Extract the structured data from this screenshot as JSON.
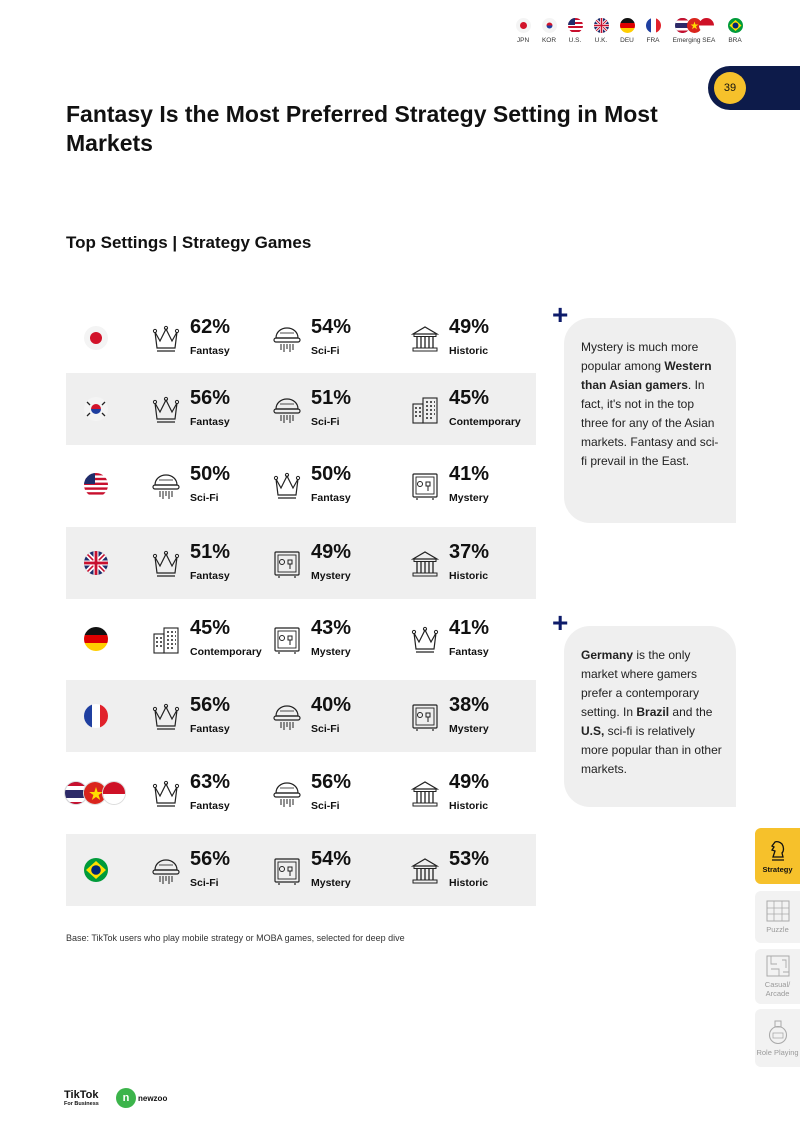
{
  "header": {
    "markets": [
      {
        "code": "JPN"
      },
      {
        "code": "KOR"
      },
      {
        "code": "U.S."
      },
      {
        "code": "U.K."
      },
      {
        "code": "DEU"
      },
      {
        "code": "FRA"
      },
      {
        "code": "Emerging SEA"
      },
      {
        "code": "BRA"
      }
    ],
    "page_number": "39"
  },
  "title": "Fantasy Is the Most Preferred Strategy Setting in Most Markets",
  "subtitle": "Top Settings | Strategy Games",
  "rows": [
    {
      "market": "JPN",
      "items": [
        {
          "pct": "62%",
          "label": "Fantasy",
          "icon": "crown-icon"
        },
        {
          "pct": "54%",
          "label": "Sci-Fi",
          "icon": "spaceship-icon"
        },
        {
          "pct": "49%",
          "label": "Historic",
          "icon": "temple-icon"
        }
      ]
    },
    {
      "market": "KOR",
      "items": [
        {
          "pct": "56%",
          "label": "Fantasy",
          "icon": "crown-icon"
        },
        {
          "pct": "51%",
          "label": "Sci-Fi",
          "icon": "spaceship-icon"
        },
        {
          "pct": "45%",
          "label": "Contemporary",
          "icon": "building-icon"
        }
      ]
    },
    {
      "market": "U.S.",
      "items": [
        {
          "pct": "50%",
          "label": "Sci-Fi",
          "icon": "spaceship-icon"
        },
        {
          "pct": "50%",
          "label": "Fantasy",
          "icon": "crown-icon"
        },
        {
          "pct": "41%",
          "label": "Mystery",
          "icon": "safe-icon"
        }
      ]
    },
    {
      "market": "U.K.",
      "items": [
        {
          "pct": "51%",
          "label": "Fantasy",
          "icon": "crown-icon"
        },
        {
          "pct": "49%",
          "label": "Mystery",
          "icon": "safe-icon"
        },
        {
          "pct": "37%",
          "label": "Historic",
          "icon": "temple-icon"
        }
      ]
    },
    {
      "market": "DEU",
      "items": [
        {
          "pct": "45%",
          "label": "Contemporary",
          "icon": "building-icon"
        },
        {
          "pct": "43%",
          "label": "Mystery",
          "icon": "safe-icon"
        },
        {
          "pct": "41%",
          "label": "Fantasy",
          "icon": "crown-icon"
        }
      ]
    },
    {
      "market": "FRA",
      "items": [
        {
          "pct": "56%",
          "label": "Fantasy",
          "icon": "crown-icon"
        },
        {
          "pct": "40%",
          "label": "Sci-Fi",
          "icon": "spaceship-icon"
        },
        {
          "pct": "38%",
          "label": "Mystery",
          "icon": "safe-icon"
        }
      ]
    },
    {
      "market": "Emerging SEA",
      "items": [
        {
          "pct": "63%",
          "label": "Fantasy",
          "icon": "crown-icon"
        },
        {
          "pct": "56%",
          "label": "Sci-Fi",
          "icon": "spaceship-icon"
        },
        {
          "pct": "49%",
          "label": "Historic",
          "icon": "temple-icon"
        }
      ]
    },
    {
      "market": "BRA",
      "items": [
        {
          "pct": "56%",
          "label": "Sci-Fi",
          "icon": "spaceship-icon"
        },
        {
          "pct": "54%",
          "label": "Mystery",
          "icon": "safe-icon"
        },
        {
          "pct": "53%",
          "label": "Historic",
          "icon": "temple-icon"
        }
      ]
    }
  ],
  "notes": [
    {
      "parts": [
        {
          "t": "Mystery is much more popular among ",
          "b": false
        },
        {
          "t": "Western than Asian gamers",
          "b": true
        },
        {
          "t": ". In fact, it's not in the top three for any of the Asian markets. Fantasy and sci-fi prevail in the East.",
          "b": false
        }
      ]
    },
    {
      "parts": [
        {
          "t": "Germany",
          "b": true
        },
        {
          "t": " is the only market where gamers prefer a contemporary setting. In ",
          "b": false
        },
        {
          "t": "Brazil",
          "b": true
        },
        {
          "t": " and the ",
          "b": false
        },
        {
          "t": "U.S,",
          "b": true
        },
        {
          "t": " sci-fi is relatively more popular than in other markets.",
          "b": false
        }
      ]
    }
  ],
  "base_note": "Base: TikTok users who play mobile strategy or MOBA games, selected for deep dive",
  "side_tabs": [
    {
      "label": "Strategy",
      "active": true,
      "icon": "chess-knight-icon"
    },
    {
      "label": "Puzzle",
      "active": false,
      "icon": "puzzle-grid-icon"
    },
    {
      "label": "Casual/ Arcade",
      "active": false,
      "icon": "maze-icon"
    },
    {
      "label": "Role Playing",
      "active": false,
      "icon": "potion-icon"
    }
  ],
  "footer": {
    "tiktok": "TikTok",
    "tiktok_sub": "For Business",
    "newzoo": "newzoo"
  },
  "colors": {
    "accent": "#f6c12b",
    "navy": "#0d1b4a",
    "row_shade": "#efefef"
  }
}
